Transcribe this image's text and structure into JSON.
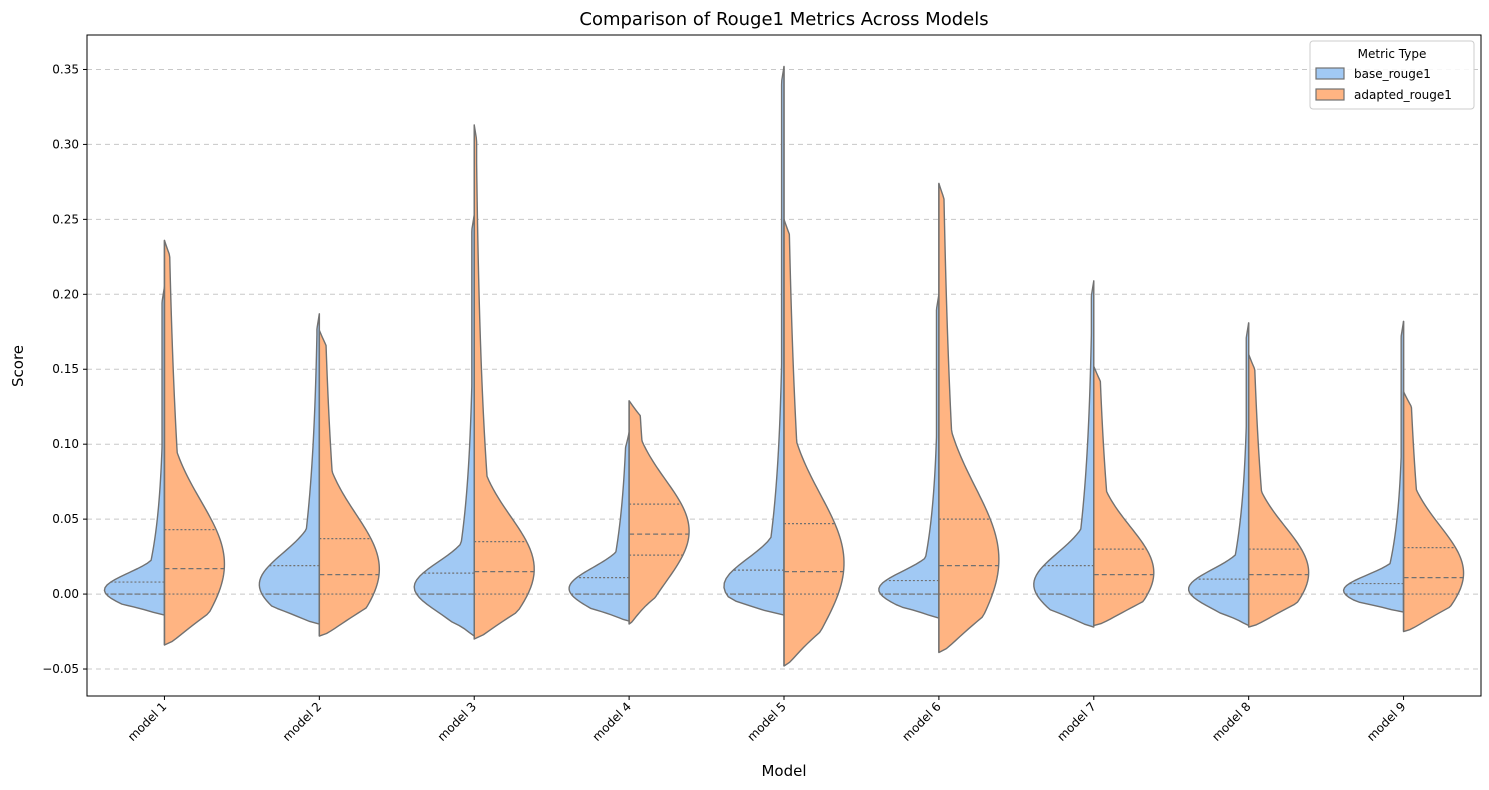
{
  "chart_data": {
    "type": "violin",
    "title": "Comparison of Rouge1 Metrics Across Models",
    "xlabel": "Model",
    "ylabel": "Score",
    "ylim": [
      -0.068,
      0.373
    ],
    "yticks": [
      "−0.05",
      "0.00",
      "0.05",
      "0.10",
      "0.15",
      "0.20",
      "0.25",
      "0.30",
      "0.35"
    ],
    "ytick_values": [
      -0.05,
      0.0,
      0.05,
      0.1,
      0.15,
      0.2,
      0.25,
      0.3,
      0.35
    ],
    "grid": "horizontal dashed",
    "legend": {
      "title": "Metric Type",
      "placement": "top-right",
      "entries": [
        "base_rouge1",
        "adapted_rouge1"
      ]
    },
    "colors": {
      "base_rouge1": "#a1c9f4",
      "adapted_rouge1": "#ffb482",
      "outline": "#717171",
      "grid": "#c8c8c8"
    },
    "categories": [
      "model 1",
      "model 2",
      "model 3",
      "model 4",
      "model 5",
      "model 6",
      "model 7",
      "model 8",
      "model 9"
    ],
    "series": [
      {
        "name": "base_rouge1",
        "min": [
          -0.014,
          -0.02,
          -0.028,
          -0.018,
          -0.014,
          -0.016,
          -0.022,
          -0.021,
          -0.012
        ],
        "max": [
          0.205,
          0.187,
          0.253,
          0.108,
          0.352,
          0.2,
          0.209,
          0.181,
          0.182
        ],
        "q1": [
          0.0,
          0.0,
          0.0,
          0.0,
          0.0,
          0.0,
          0.0,
          0.0,
          0.0
        ],
        "median": [
          0.0,
          0.0,
          0.0,
          0.0,
          0.0,
          0.0,
          0.0,
          0.0,
          0.0
        ],
        "q3": [
          0.008,
          0.019,
          0.014,
          0.011,
          0.016,
          0.009,
          0.019,
          0.01,
          0.007
        ]
      },
      {
        "name": "adapted_rouge1",
        "min": [
          -0.034,
          -0.028,
          -0.03,
          -0.02,
          -0.048,
          -0.039,
          -0.021,
          -0.022,
          -0.025
        ],
        "max": [
          0.236,
          0.176,
          0.313,
          0.129,
          0.25,
          0.274,
          0.152,
          0.16,
          0.135
        ],
        "q1": [
          0.0,
          0.0,
          0.0,
          0.026,
          0.0,
          0.0,
          0.0,
          0.0,
          0.0
        ],
        "median": [
          0.017,
          0.013,
          0.015,
          0.04,
          0.015,
          0.019,
          0.013,
          0.013,
          0.011
        ],
        "q3": [
          0.043,
          0.037,
          0.035,
          0.06,
          0.047,
          0.05,
          0.03,
          0.03,
          0.031
        ]
      }
    ]
  }
}
